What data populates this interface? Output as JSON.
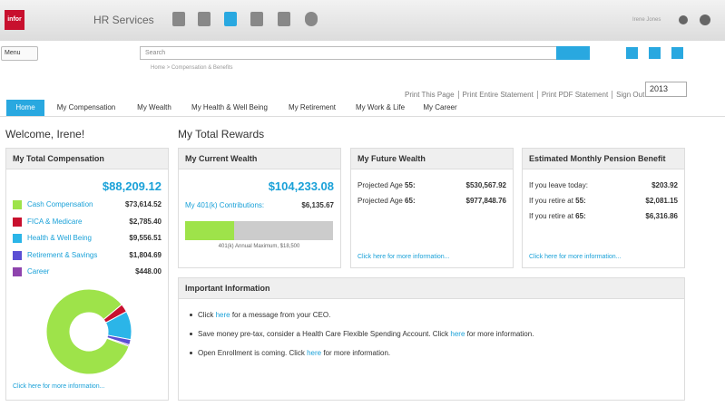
{
  "header": {
    "logo": "infor",
    "app_title": "HR Services",
    "user": "Irene Jones"
  },
  "toolbar": {
    "menu": "Menu",
    "search_placeholder": "Search"
  },
  "breadcrumb": "Home > Compensation & Benefits",
  "actions": [
    "Print This Page",
    "Print Entire Statement",
    "Print PDF Statement",
    "Sign Out"
  ],
  "year": "2013",
  "tabs": [
    "Home",
    "My Compensation",
    "My Wealth",
    "My Health & Well Being",
    "My Retirement",
    "My Work & Life",
    "My Career"
  ],
  "welcome": "Welcome, Irene!",
  "section_title": "My Total Rewards",
  "total_compensation": {
    "title": "My Total Compensation",
    "total": "$88,209.12",
    "link": "Click here for more information..."
  },
  "current_wealth": {
    "title": "My Current Wealth",
    "total": "$104,233.08"
  },
  "future_wealth": {
    "title": "My Future Wealth",
    "rows": [
      {
        "label": "Projected Age",
        "bold": "55:",
        "value": "$530,567.92"
      },
      {
        "label": "Projected Age",
        "bold": "65:",
        "value": "$977,848.76"
      }
    ],
    "link": "Click here for more information..."
  },
  "pension": {
    "title": "Estimated Monthly Pension Benefit",
    "rows": [
      {
        "label": "If you leave today:",
        "bold": "",
        "value": "$203.92"
      },
      {
        "label": "If you retire at",
        "bold": "55:",
        "value": "$2,081.15"
      },
      {
        "label": "If you retire at",
        "bold": "65:",
        "value": "$6,316.86"
      }
    ],
    "link": "Click here for more information..."
  },
  "important_info": {
    "title": "Important Information",
    "items": [
      {
        "before": "Click",
        "link": "here",
        "after": "for a message from your CEO."
      },
      {
        "before": "Save money pre-tax, consider a Health Care Flexible Spending Account. Click",
        "link": "here",
        "after": "for more information."
      },
      {
        "before": "Open Enrollment is coming. Click",
        "link": "here",
        "after": "for more information."
      }
    ]
  },
  "chart_data": [
    {
      "type": "pie",
      "categories": [
        "Cash Compensation",
        "FICA & Medicare",
        "Health & Well Being",
        "Retirement & Savings",
        "Career"
      ],
      "values": [
        73614.52,
        2785.4,
        9556.51,
        1804.69,
        448.0
      ],
      "value_labels": [
        "$73,614.52",
        "$2,785.40",
        "$9,556.51",
        "$1,804.69",
        "$448.00"
      ],
      "colors": [
        "#9ee34a",
        "#c8102e",
        "#2bb5e8",
        "#5b4fd4",
        "#8e44ad"
      ]
    },
    {
      "type": "bar",
      "categories": [
        "My 401(k) Contributions:"
      ],
      "values": [
        6135.67
      ],
      "value_labels": [
        "$6,135.67"
      ],
      "xlim": [
        0,
        18500
      ],
      "color": "#9ee34a",
      "annotation": "401(k) Annual Maximum, $18,500"
    }
  ]
}
